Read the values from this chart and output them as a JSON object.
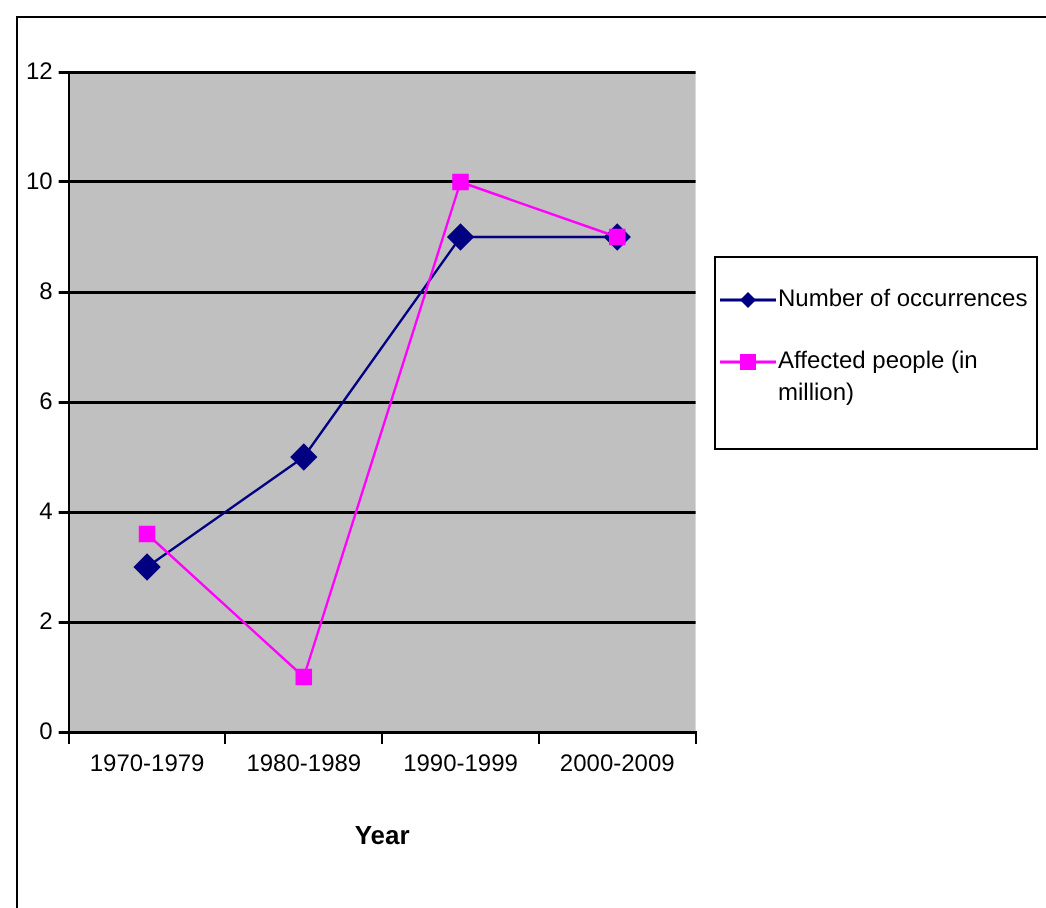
{
  "chart_data": {
    "type": "line",
    "xlabel": "Year",
    "categories": [
      "1970-1979",
      "1980-1989",
      "1990-1999",
      "2000-2009"
    ],
    "series": [
      {
        "name": "Number of occurrences",
        "color": "#000080",
        "marker": "diamond",
        "values": [
          3,
          5,
          9,
          9
        ]
      },
      {
        "name": "Affected people (in million)",
        "color": "#ff00ff",
        "marker": "square",
        "values": [
          3.6,
          1,
          10,
          9
        ]
      }
    ],
    "ylim": [
      0,
      12
    ],
    "yticks": [
      0,
      2,
      4,
      6,
      8,
      10,
      12
    ],
    "grid": "y",
    "legend": "right"
  }
}
